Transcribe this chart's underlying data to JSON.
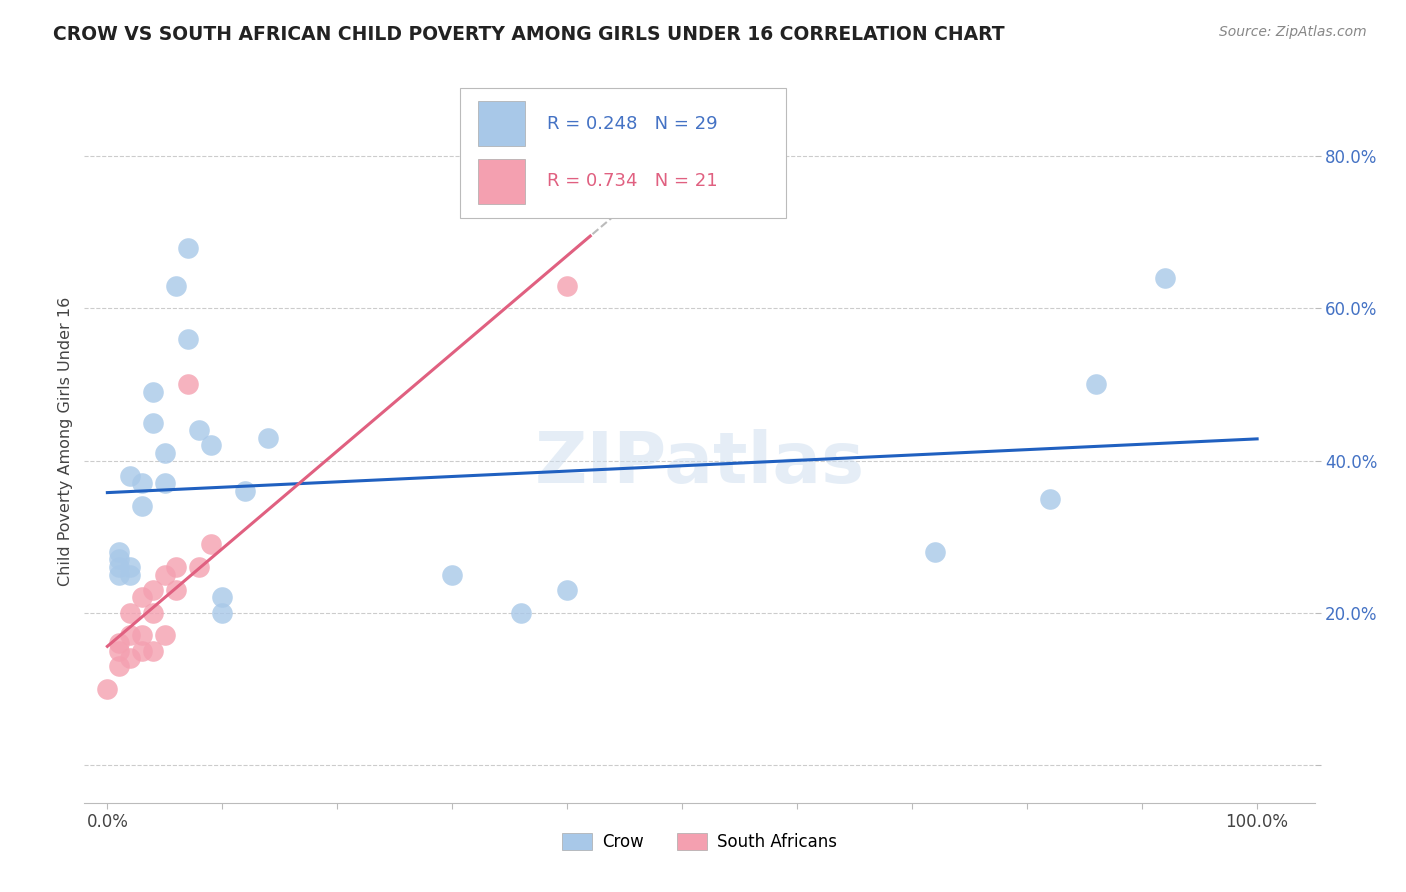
{
  "title": "CROW VS SOUTH AFRICAN CHILD POVERTY AMONG GIRLS UNDER 16 CORRELATION CHART",
  "source": "Source: ZipAtlas.com",
  "ylabel": "Child Poverty Among Girls Under 16",
  "crow_R": 0.248,
  "crow_N": 29,
  "sa_R": 0.734,
  "sa_N": 21,
  "crow_color": "#a8c8e8",
  "sa_color": "#f4a0b0",
  "crow_line_color": "#2060c0",
  "sa_line_color": "#e06080",
  "crow_x": [
    0.01,
    0.01,
    0.01,
    0.01,
    0.02,
    0.02,
    0.02,
    0.03,
    0.03,
    0.04,
    0.04,
    0.05,
    0.05,
    0.06,
    0.07,
    0.07,
    0.08,
    0.09,
    0.1,
    0.1,
    0.12,
    0.14,
    0.3,
    0.36,
    0.4,
    0.72,
    0.82,
    0.86,
    0.92
  ],
  "crow_y": [
    0.25,
    0.26,
    0.27,
    0.28,
    0.25,
    0.26,
    0.38,
    0.37,
    0.34,
    0.45,
    0.49,
    0.37,
    0.41,
    0.63,
    0.68,
    0.56,
    0.44,
    0.42,
    0.2,
    0.22,
    0.36,
    0.43,
    0.25,
    0.2,
    0.23,
    0.28,
    0.35,
    0.5,
    0.64
  ],
  "sa_x": [
    0.0,
    0.01,
    0.01,
    0.01,
    0.02,
    0.02,
    0.02,
    0.03,
    0.03,
    0.03,
    0.04,
    0.04,
    0.04,
    0.05,
    0.05,
    0.06,
    0.06,
    0.07,
    0.08,
    0.09,
    0.4
  ],
  "sa_y": [
    0.1,
    0.13,
    0.15,
    0.16,
    0.14,
    0.17,
    0.2,
    0.15,
    0.17,
    0.22,
    0.15,
    0.2,
    0.23,
    0.17,
    0.25,
    0.23,
    0.26,
    0.5,
    0.26,
    0.29,
    0.63
  ],
  "xlim": [
    -0.02,
    1.05
  ],
  "ylim": [
    -0.05,
    0.9
  ],
  "xticks": [
    0.0,
    0.1,
    0.2,
    0.3,
    0.4,
    0.5,
    0.6,
    0.7,
    0.8,
    0.9,
    1.0
  ],
  "xtick_labels": [
    "0.0%",
    "",
    "",
    "",
    "",
    "",
    "",
    "",
    "",
    "",
    "100.0%"
  ],
  "yticks": [
    0.0,
    0.2,
    0.4,
    0.6,
    0.8
  ],
  "ytick_labels": [
    "",
    "20.0%",
    "40.0%",
    "60.0%",
    "80.0%"
  ]
}
